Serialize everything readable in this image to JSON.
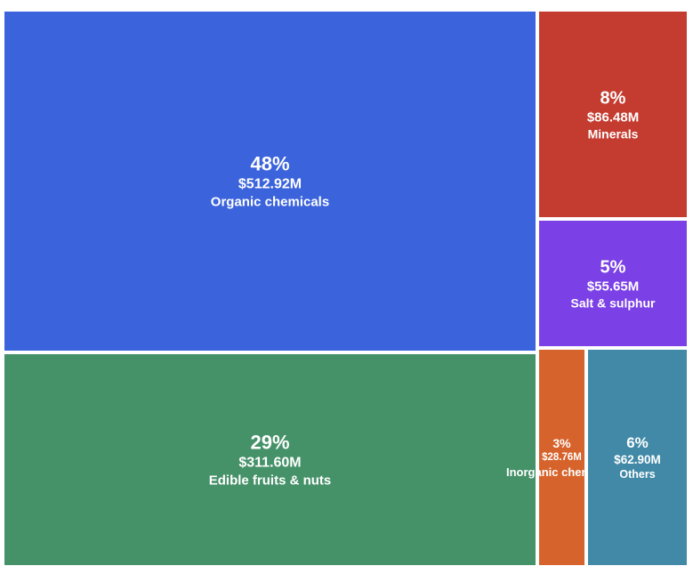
{
  "chart_data": {
    "type": "treemap",
    "title": "",
    "unit": "USD millions",
    "legend": "none",
    "text_color": "#ffffff",
    "background": "#ffffff",
    "tiles": [
      {
        "label": "Organic chemicals",
        "percent": "48%",
        "value": "$512.92M",
        "share_pct": 48,
        "value_usd_m": 512.92,
        "color": "#3b63dc"
      },
      {
        "label": "Edible fruits & nuts",
        "percent": "29%",
        "value": "$311.60M",
        "share_pct": 29,
        "value_usd_m": 311.6,
        "color": "#459168"
      },
      {
        "label": "Minerals",
        "percent": "8%",
        "value": "$86.48M",
        "share_pct": 8,
        "value_usd_m": 86.48,
        "color": "#c43c30"
      },
      {
        "label": "Salt & sulphur",
        "percent": "5%",
        "value": "$55.65M",
        "share_pct": 5,
        "value_usd_m": 55.65,
        "color": "#7b40e6"
      },
      {
        "label": "Inorganic chemicals",
        "percent": "3%",
        "value": "$28.76M",
        "share_pct": 3,
        "value_usd_m": 28.76,
        "color": "#d7632c"
      },
      {
        "label": "Others",
        "percent": "6%",
        "value": "$62.90M",
        "share_pct": 6,
        "value_usd_m": 62.9,
        "color": "#4189a7"
      }
    ]
  }
}
